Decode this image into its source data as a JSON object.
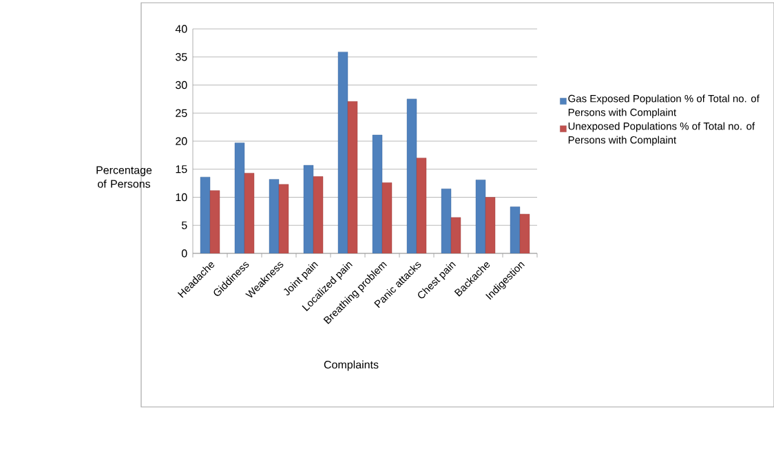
{
  "chart_data": {
    "type": "bar",
    "xlabel": "Complaints",
    "ylabel": "Percentage of Persons",
    "categories": [
      "Headache",
      "Giddiness",
      "Weakness",
      "Joint pain",
      "Localized pain",
      "Breathing problem",
      "Panic attacks",
      "Chest pain",
      "Backache",
      "Indigestion"
    ],
    "series": [
      {
        "name": "Gas Exposed Population % of Total no. of Persons with Complaint",
        "color": "#4f81bd",
        "values": [
          13.6,
          19.7,
          13.2,
          15.7,
          35.9,
          21.1,
          27.5,
          11.5,
          13.1,
          8.3
        ]
      },
      {
        "name": "Unexposed Populations % of Total no. of Persons with Complaint",
        "color": "#c0504d",
        "values": [
          11.2,
          14.3,
          12.3,
          13.7,
          27.1,
          12.6,
          17.0,
          6.4,
          10.0,
          7.0
        ]
      }
    ],
    "ylim": [
      0,
      40
    ],
    "yticks": [
      0,
      5,
      10,
      15,
      20,
      25,
      30,
      35,
      40
    ],
    "grid": "y",
    "legend": "right"
  }
}
